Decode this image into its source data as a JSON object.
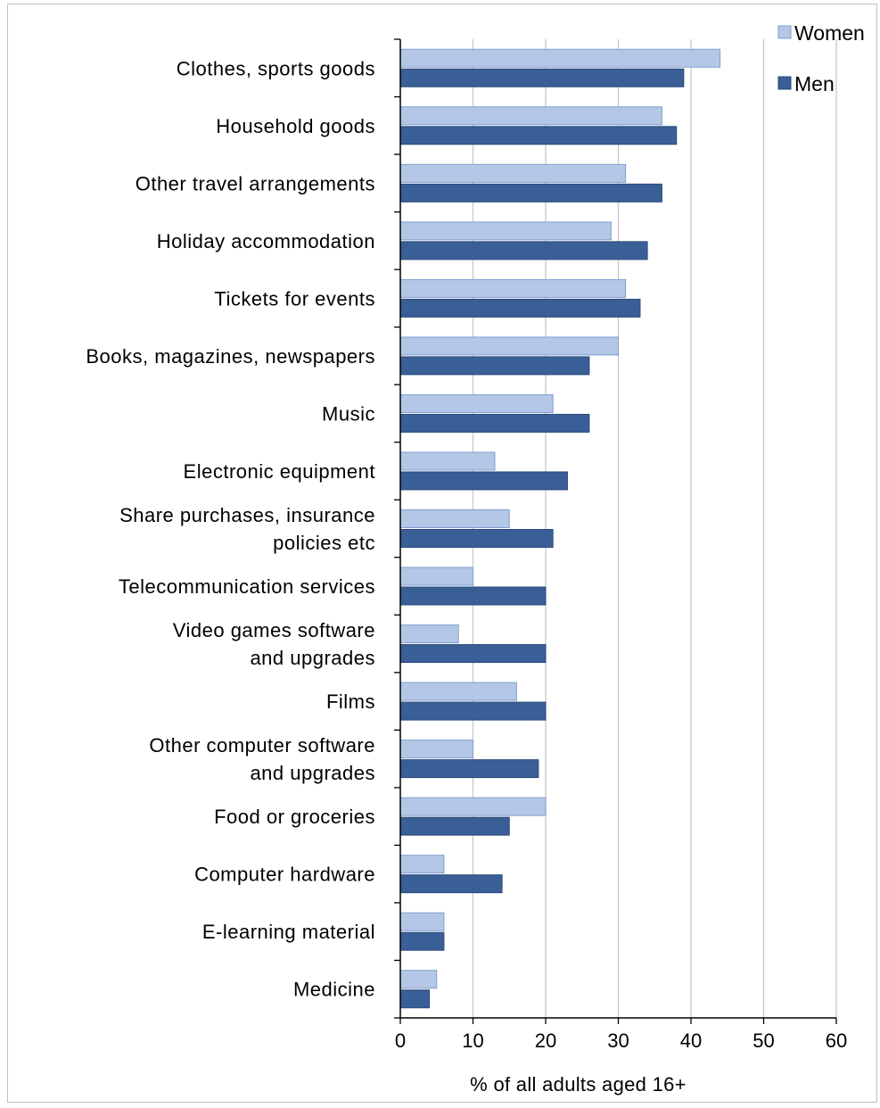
{
  "chart_data": {
    "type": "bar",
    "orientation": "horizontal",
    "categories": [
      [
        "Clothes, sports goods"
      ],
      [
        "Household goods"
      ],
      [
        "Other travel arrangements"
      ],
      [
        "Holiday accommodation"
      ],
      [
        "Tickets for events"
      ],
      [
        "Books, magazines, newspapers"
      ],
      [
        "Music"
      ],
      [
        "Electronic equipment"
      ],
      [
        "Share purchases, insurance",
        "policies etc"
      ],
      [
        "Telecommunication services"
      ],
      [
        "Video games software",
        "and upgrades"
      ],
      [
        "Films"
      ],
      [
        "Other computer software",
        "and upgrades"
      ],
      [
        "Food or groceries"
      ],
      [
        "Computer hardware"
      ],
      [
        "E-learning material"
      ],
      [
        "Medicine"
      ]
    ],
    "series": [
      {
        "name": "Women",
        "color": "#b4c7e7",
        "values": [
          44,
          36,
          31,
          29,
          31,
          30,
          21,
          13,
          15,
          10,
          8,
          16,
          10,
          20,
          6,
          6,
          5
        ]
      },
      {
        "name": "Men",
        "color": "#3a5f96",
        "values": [
          39,
          38,
          36,
          34,
          33,
          26,
          26,
          23,
          21,
          20,
          20,
          20,
          19,
          15,
          14,
          6,
          4
        ]
      }
    ],
    "xlabel": "% of all  adults aged 16+",
    "xlim": [
      0,
      60
    ],
    "xticks": [
      0,
      10,
      20,
      30,
      40,
      50,
      60
    ],
    "gridlines": "vertical",
    "legend_position": "top-right"
  }
}
